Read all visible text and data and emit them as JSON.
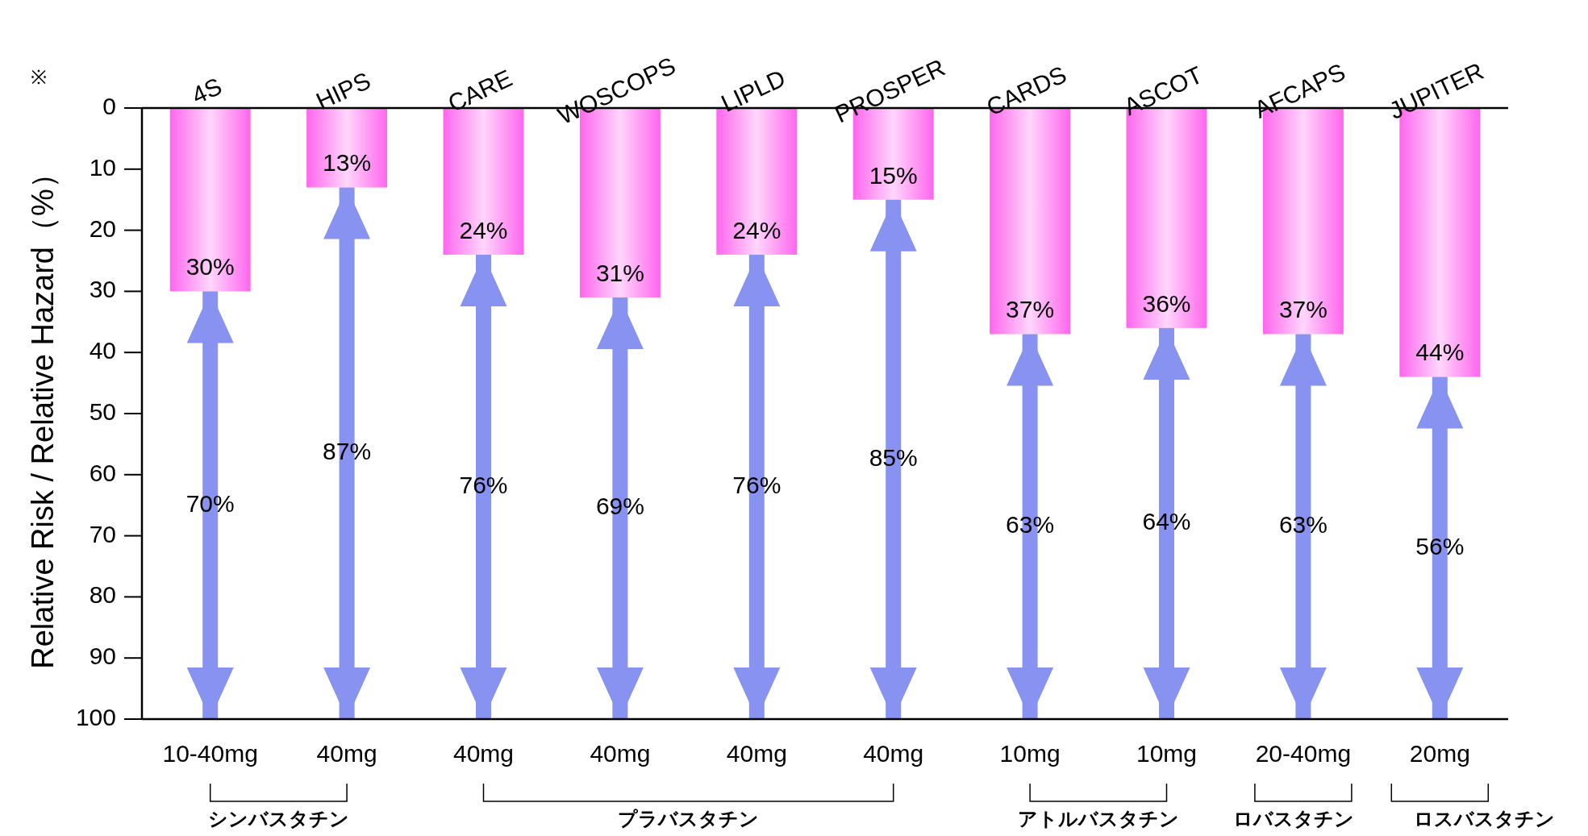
{
  "chart_data": {
    "type": "bar",
    "stacked": true,
    "ylabel": "Relative Risk / Relative Hazard（%）",
    "ylim": [
      100,
      0
    ],
    "yticks": [
      0,
      10,
      20,
      30,
      40,
      50,
      60,
      70,
      80,
      90,
      100
    ],
    "categories": [
      "4S",
      "HIPS",
      "CARE",
      "WOSCOPS",
      "LIPLD",
      "PROSPER",
      "CARDS",
      "ASCOT",
      "AFCAPS",
      "JUPITER"
    ],
    "series": [
      {
        "color": "#ff66ee",
        "values": [
          30,
          13,
          24,
          31,
          24,
          15,
          37,
          36,
          37,
          44
        ],
        "value_labels": [
          "30%",
          "13%",
          "24%",
          "31%",
          "24%",
          "15%",
          "37%",
          "36%",
          "37%",
          "44%"
        ]
      },
      {
        "color": "#8892f0",
        "values": [
          70,
          87,
          76,
          69,
          76,
          85,
          63,
          64,
          63,
          56
        ],
        "value_labels": [
          "70%",
          "87%",
          "76%",
          "69%",
          "76%",
          "85%",
          "63%",
          "64%",
          "63%",
          "56%"
        ]
      }
    ],
    "annotations": [
      "※",
      "10-40mg",
      "40mg",
      "40mg",
      "40mg",
      "40mg",
      "40mg",
      "10mg",
      "10mg",
      "20-40mg",
      "20mg",
      "シンバスタチン",
      "プラバスタチン",
      "アトルバスタチン",
      "ロバスタチン",
      "ロスバスタチン"
    ]
  }
}
